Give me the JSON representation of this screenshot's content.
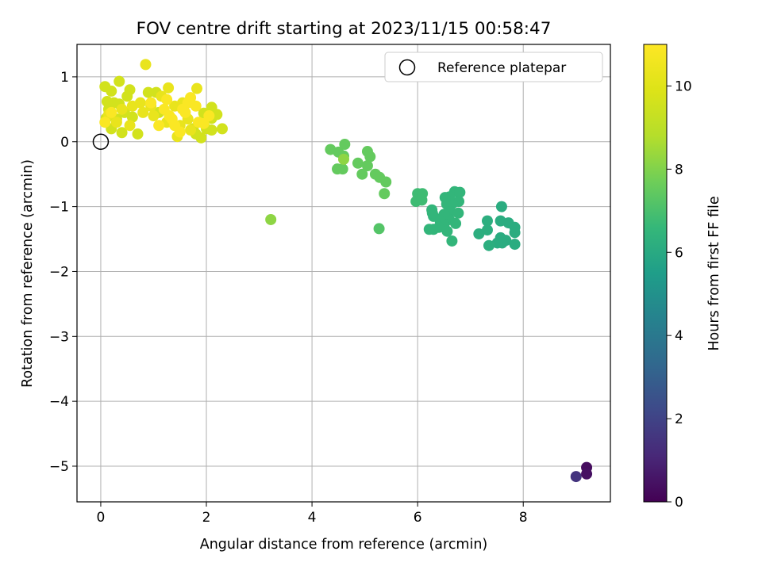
{
  "chart_data": {
    "type": "scatter",
    "title": "FOV centre drift starting at 2023/11/15 00:58:47",
    "xlabel": "Angular distance from reference (arcmin)",
    "ylabel": "Rotation from reference (arcmin)",
    "xlim": [
      -0.45,
      9.65
    ],
    "ylim": [
      -5.55,
      1.5
    ],
    "xticks": [
      0,
      2,
      4,
      6,
      8
    ],
    "xtick_labels": [
      "0",
      "2",
      "4",
      "6",
      "8"
    ],
    "yticks": [
      1,
      0,
      -1,
      -2,
      -3,
      -4,
      -5
    ],
    "ytick_labels": [
      "1",
      "0",
      "−1",
      "−2",
      "−3",
      "−4",
      "−5"
    ],
    "grid": true,
    "legend": {
      "position": "upper-right",
      "entries": [
        "Reference platepar"
      ]
    },
    "reference_point": {
      "x": 0,
      "y": 0,
      "label": "Reference platepar",
      "marker": "open-circle"
    },
    "colorbar": {
      "label": "Hours from first FF file",
      "min": 0,
      "max": 11,
      "ticks": [
        0,
        2,
        4,
        6,
        8,
        10
      ],
      "tick_labels": [
        "0",
        "2",
        "4",
        "6",
        "8",
        "10"
      ],
      "colormap": "viridis"
    },
    "series": [
      {
        "points": [
          [
            9.0,
            -5.16,
            1.5
          ],
          [
            9.2,
            -5.02,
            0.3
          ],
          [
            9.2,
            -5.12,
            0.4
          ],
          [
            7.59,
            -1.0,
            6.1
          ],
          [
            7.57,
            -1.22,
            6.1
          ],
          [
            7.72,
            -1.25,
            6.1
          ],
          [
            7.84,
            -1.32,
            6.1
          ],
          [
            7.84,
            -1.4,
            6.1
          ],
          [
            7.57,
            -1.48,
            6.1
          ],
          [
            7.67,
            -1.52,
            6.1
          ],
          [
            7.6,
            -1.56,
            6.1
          ],
          [
            7.51,
            -1.56,
            6.1
          ],
          [
            7.84,
            -1.58,
            6.1
          ],
          [
            7.32,
            -1.22,
            6.2
          ],
          [
            7.32,
            -1.36,
            6.2
          ],
          [
            7.16,
            -1.42,
            6.2
          ],
          [
            7.35,
            -1.6,
            6.2
          ],
          [
            6.7,
            -0.77,
            6.5
          ],
          [
            6.8,
            -0.78,
            6.5
          ],
          [
            6.78,
            -0.92,
            6.5
          ],
          [
            6.66,
            -0.95,
            6.5
          ],
          [
            6.6,
            -0.85,
            6.5
          ],
          [
            6.52,
            -0.86,
            6.5
          ],
          [
            6.55,
            -0.96,
            6.5
          ],
          [
            6.62,
            -1.08,
            6.5
          ],
          [
            6.77,
            -1.1,
            6.5
          ],
          [
            6.6,
            -1.2,
            6.5
          ],
          [
            6.72,
            -1.26,
            6.5
          ],
          [
            6.5,
            -1.12,
            6.5
          ],
          [
            6.43,
            -1.23,
            6.5
          ],
          [
            6.5,
            -1.28,
            6.5
          ],
          [
            6.4,
            -1.32,
            6.5
          ],
          [
            6.3,
            -1.35,
            6.5
          ],
          [
            6.3,
            -1.15,
            6.5
          ],
          [
            6.27,
            -1.05,
            6.5
          ],
          [
            6.28,
            -1.1,
            6.5
          ],
          [
            6.22,
            -1.35,
            6.5
          ],
          [
            6.65,
            -1.53,
            6.5
          ],
          [
            6.56,
            -1.38,
            6.5
          ],
          [
            6.0,
            -0.8,
            6.8
          ],
          [
            6.09,
            -0.8,
            6.8
          ],
          [
            5.97,
            -0.92,
            6.8
          ],
          [
            6.08,
            -0.9,
            6.8
          ],
          [
            5.27,
            -1.34,
            7.2
          ],
          [
            4.35,
            -0.12,
            7.5
          ],
          [
            4.48,
            -0.42,
            7.5
          ],
          [
            4.5,
            -0.16,
            7.5
          ],
          [
            4.58,
            -0.42,
            7.5
          ],
          [
            4.62,
            -0.04,
            7.5
          ],
          [
            4.6,
            -0.22,
            7.5
          ],
          [
            4.87,
            -0.33,
            7.5
          ],
          [
            4.95,
            -0.5,
            7.5
          ],
          [
            5.05,
            -0.15,
            7.5
          ],
          [
            5.1,
            -0.23,
            7.5
          ],
          [
            5.05,
            -0.37,
            7.5
          ],
          [
            5.2,
            -0.5,
            7.5
          ],
          [
            5.28,
            -0.55,
            7.5
          ],
          [
            5.4,
            -0.62,
            7.5
          ],
          [
            5.37,
            -0.8,
            7.5
          ],
          [
            4.6,
            -0.27,
            8.2
          ],
          [
            3.22,
            -1.2,
            8.2
          ],
          [
            0.08,
            0.85,
            9.6
          ],
          [
            0.2,
            0.78,
            9.6
          ],
          [
            0.35,
            0.93,
            9.6
          ],
          [
            0.55,
            0.8,
            9.6
          ],
          [
            0.9,
            0.76,
            9.6
          ],
          [
            1.05,
            0.76,
            9.6
          ],
          [
            0.15,
            0.5,
            9.6
          ],
          [
            0.3,
            0.35,
            9.6
          ],
          [
            0.4,
            0.14,
            9.6
          ],
          [
            0.7,
            0.12,
            9.6
          ],
          [
            0.25,
            0.6,
            9.6
          ],
          [
            0.45,
            0.45,
            9.6
          ],
          [
            0.6,
            0.38,
            9.6
          ],
          [
            1.1,
            0.45,
            9.6
          ],
          [
            1.9,
            0.06,
            9.6
          ],
          [
            1.8,
            0.12,
            9.6
          ],
          [
            1.75,
            0.2,
            9.6
          ],
          [
            2.0,
            0.2,
            9.6
          ],
          [
            2.1,
            0.18,
            9.6
          ],
          [
            2.3,
            0.2,
            9.6
          ],
          [
            2.1,
            0.36,
            9.6
          ],
          [
            2.2,
            0.42,
            9.6
          ],
          [
            2.1,
            0.53,
            9.6
          ],
          [
            1.95,
            0.44,
            9.6
          ],
          [
            0.12,
            0.62,
            9.6
          ],
          [
            0.1,
            0.36,
            9.6
          ],
          [
            0.35,
            0.58,
            9.6
          ],
          [
            0.2,
            0.2,
            9.6
          ],
          [
            0.5,
            0.7,
            9.6
          ],
          [
            0.85,
            1.19,
            10.3
          ],
          [
            1.28,
            0.83,
            10.3
          ],
          [
            1.82,
            0.82,
            10.3
          ],
          [
            0.6,
            0.55,
            10.3
          ],
          [
            0.75,
            0.6,
            10.3
          ],
          [
            0.8,
            0.45,
            10.3
          ],
          [
            1.0,
            0.4,
            10.3
          ],
          [
            1.4,
            0.55,
            10.3
          ],
          [
            1.55,
            0.6,
            10.3
          ],
          [
            1.25,
            0.3,
            10.3
          ],
          [
            1.5,
            0.25,
            10.3
          ],
          [
            1.65,
            0.35,
            10.3
          ],
          [
            1.45,
            0.08,
            10.3
          ],
          [
            1.7,
            0.18,
            10.3
          ],
          [
            0.3,
            0.3,
            10.3
          ],
          [
            0.15,
            0.42,
            10.3
          ],
          [
            0.55,
            0.25,
            10.3
          ],
          [
            0.4,
            0.5,
            10.3
          ],
          [
            0.95,
            0.55,
            10.3
          ],
          [
            1.15,
            0.7,
            10.3
          ],
          [
            1.7,
            0.68,
            10.9
          ],
          [
            1.6,
            0.45,
            10.9
          ],
          [
            1.35,
            0.35,
            10.9
          ],
          [
            1.2,
            0.5,
            10.9
          ],
          [
            1.3,
            0.4,
            10.9
          ],
          [
            1.5,
            0.15,
            10.9
          ],
          [
            1.85,
            0.3,
            10.9
          ],
          [
            1.95,
            0.28,
            10.9
          ],
          [
            2.05,
            0.4,
            10.9
          ],
          [
            1.8,
            0.55,
            10.9
          ],
          [
            1.55,
            0.5,
            10.9
          ],
          [
            1.4,
            0.25,
            10.9
          ],
          [
            1.1,
            0.25,
            10.9
          ],
          [
            0.95,
            0.6,
            10.9
          ],
          [
            1.25,
            0.65,
            10.9
          ],
          [
            1.65,
            0.6,
            10.9
          ],
          [
            0.2,
            0.45,
            10.9
          ],
          [
            0.08,
            0.3,
            10.9
          ]
        ]
      }
    ]
  }
}
